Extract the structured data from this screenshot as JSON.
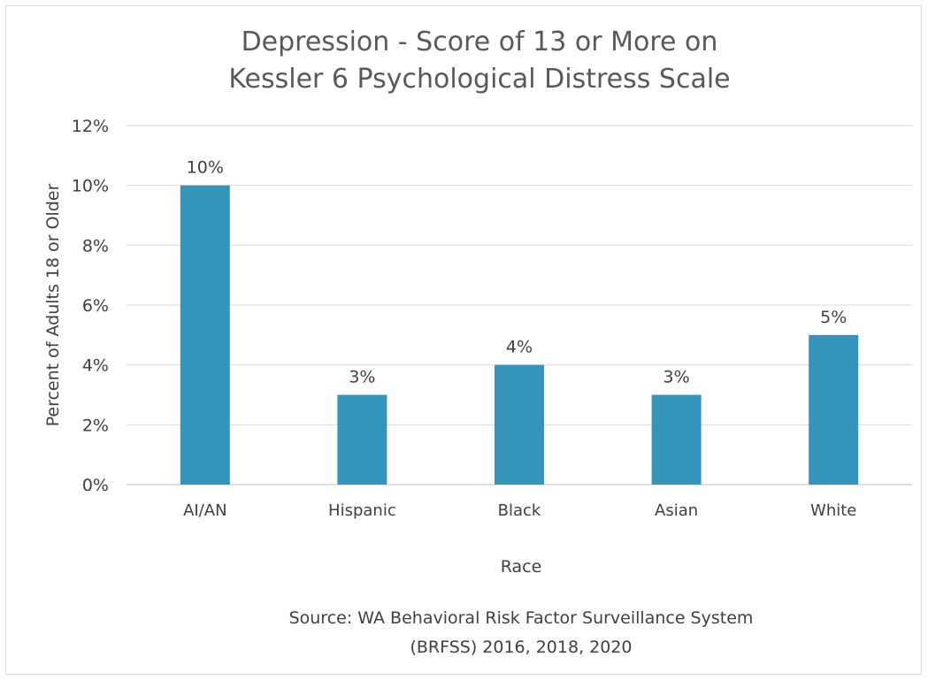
{
  "chart_data": {
    "type": "bar",
    "title_lines": [
      "Depression - Score of 13 or More on",
      "Kessler 6 Psychological Distress Scale"
    ],
    "xlabel": "Race",
    "ylabel": "Percent of Adults 18 or Older",
    "categories": [
      "AI/AN",
      "Hispanic",
      "Black",
      "Asian",
      "White"
    ],
    "values": [
      10,
      3,
      4,
      3,
      5
    ],
    "data_labels": [
      "10%",
      "3%",
      "4%",
      "3%",
      "5%"
    ],
    "ylim": [
      0,
      12
    ],
    "yticks": [
      0,
      2,
      4,
      6,
      8,
      10,
      12
    ],
    "ytick_labels": [
      "0%",
      "2%",
      "4%",
      "6%",
      "8%",
      "10%",
      "12%"
    ],
    "grid": true,
    "bar_color": "#3494BA",
    "source_lines": [
      "Source:  WA Behavioral Risk Factor Surveillance System",
      "(BRFSS) 2016, 2018, 2020"
    ]
  }
}
